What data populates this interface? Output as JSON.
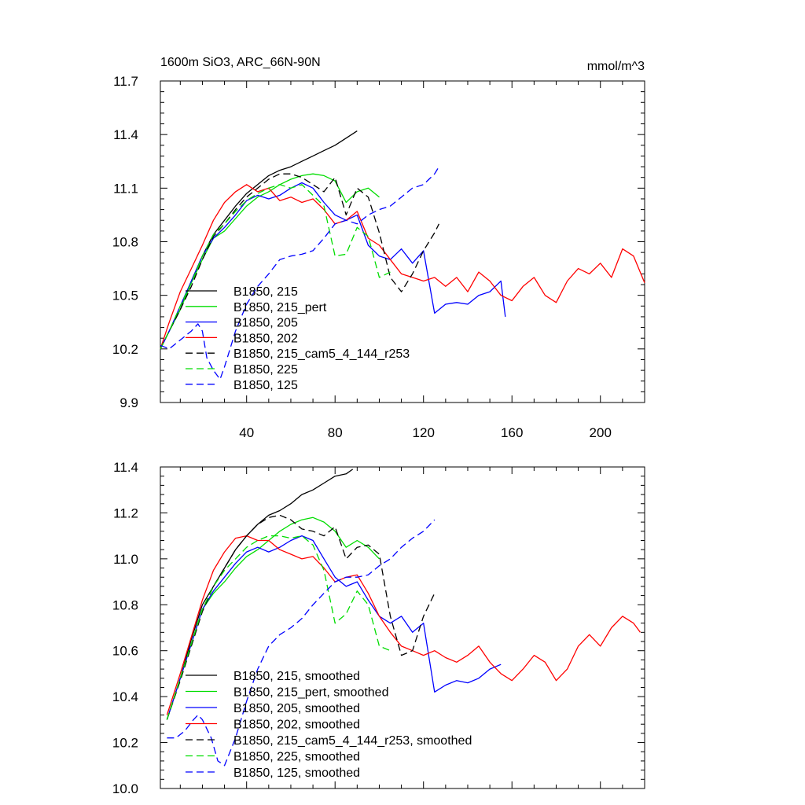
{
  "chart_data": [
    {
      "type": "line",
      "title": "1600m SiO3, ARC_66N-90N",
      "units": "mmol/m^3",
      "xlabel": "",
      "ylabel": "",
      "xlim": [
        1,
        220
      ],
      "ylim": [
        9.9,
        11.7
      ],
      "xticks": [
        "40",
        "80",
        "120",
        "160",
        "200"
      ],
      "yticks": [
        "9.9",
        "10.2",
        "10.5",
        "10.8",
        "11.1",
        "11.4",
        "11.7"
      ],
      "grid": false,
      "legend_position": "bottom-left",
      "series": [
        {
          "name": "B1850, 215",
          "color": "#000000",
          "dash": "solid",
          "x": [
            1,
            5,
            10,
            15,
            20,
            25,
            30,
            35,
            40,
            45,
            50,
            55,
            60,
            65,
            70,
            75,
            80,
            85,
            90
          ],
          "y": [
            10.2,
            10.3,
            10.42,
            10.58,
            10.72,
            10.84,
            10.92,
            11.0,
            11.07,
            11.12,
            11.17,
            11.2,
            11.22,
            11.25,
            11.28,
            11.31,
            11.34,
            11.38,
            11.42
          ]
        },
        {
          "name": "B1850, 215_pert",
          "color": "#00dd00",
          "dash": "solid",
          "x": [
            1,
            5,
            10,
            15,
            20,
            25,
            30,
            35,
            40,
            45,
            50,
            55,
            60,
            65,
            70,
            75,
            80,
            85,
            90,
            95,
            100
          ],
          "y": [
            10.2,
            10.3,
            10.42,
            10.57,
            10.7,
            10.82,
            10.86,
            10.93,
            11.0,
            11.05,
            11.08,
            11.12,
            11.15,
            11.17,
            11.18,
            11.17,
            11.14,
            11.02,
            11.08,
            11.1,
            11.05
          ]
        },
        {
          "name": "B1850, 205",
          "color": "#0000ff",
          "dash": "solid",
          "x": [
            1,
            5,
            10,
            15,
            20,
            25,
            30,
            35,
            40,
            45,
            50,
            55,
            60,
            65,
            70,
            75,
            80,
            85,
            90,
            95,
            100,
            105,
            110,
            115,
            120,
            125,
            130,
            135,
            140,
            145,
            150,
            155,
            157
          ],
          "y": [
            10.2,
            10.3,
            10.44,
            10.58,
            10.72,
            10.82,
            10.88,
            10.95,
            11.03,
            11.06,
            11.04,
            11.06,
            11.1,
            11.13,
            11.1,
            11.02,
            10.95,
            10.92,
            10.95,
            10.78,
            10.72,
            10.7,
            10.76,
            10.68,
            10.75,
            10.4,
            10.45,
            10.46,
            10.45,
            10.5,
            10.52,
            10.58,
            10.38
          ]
        },
        {
          "name": "B1850, 202",
          "color": "#ff0000",
          "dash": "solid",
          "x": [
            1,
            5,
            10,
            15,
            20,
            25,
            30,
            35,
            40,
            45,
            50,
            55,
            60,
            65,
            70,
            75,
            80,
            85,
            90,
            95,
            100,
            105,
            110,
            115,
            120,
            125,
            130,
            135,
            140,
            145,
            150,
            155,
            160,
            165,
            170,
            175,
            180,
            185,
            190,
            195,
            200,
            205,
            210,
            215,
            220
          ],
          "y": [
            10.2,
            10.35,
            10.52,
            10.65,
            10.78,
            10.92,
            11.02,
            11.08,
            11.12,
            11.08,
            11.1,
            11.03,
            11.05,
            11.02,
            11.04,
            10.98,
            10.9,
            10.92,
            10.97,
            10.82,
            10.78,
            10.7,
            10.62,
            10.6,
            10.58,
            10.6,
            10.55,
            10.6,
            10.52,
            10.63,
            10.58,
            10.5,
            10.47,
            10.55,
            10.6,
            10.5,
            10.46,
            10.58,
            10.65,
            10.62,
            10.68,
            10.6,
            10.76,
            10.72,
            10.57
          ]
        },
        {
          "name": "B1850, 215_cam5_4_144_r253",
          "color": "#000000",
          "dash": "dashed",
          "x": [
            1,
            5,
            10,
            15,
            20,
            25,
            30,
            35,
            40,
            45,
            50,
            55,
            60,
            65,
            70,
            75,
            80,
            85,
            90,
            95,
            100,
            105,
            110,
            115,
            120,
            125,
            127
          ],
          "y": [
            10.2,
            10.3,
            10.42,
            10.55,
            10.7,
            10.83,
            10.9,
            10.98,
            11.05,
            11.1,
            11.15,
            11.18,
            11.18,
            11.16,
            11.12,
            11.08,
            11.16,
            10.95,
            11.1,
            11.05,
            10.85,
            10.6,
            10.52,
            10.62,
            10.75,
            10.85,
            10.9
          ]
        },
        {
          "name": "B1850, 225",
          "color": "#00dd00",
          "dash": "dashed",
          "x": [
            1,
            5,
            10,
            15,
            20,
            25,
            30,
            35,
            40,
            45,
            50,
            55,
            60,
            65,
            70,
            75,
            80,
            85,
            90,
            95,
            100,
            105
          ],
          "y": [
            10.2,
            10.3,
            10.44,
            10.57,
            10.72,
            10.84,
            10.9,
            10.97,
            11.03,
            11.07,
            11.1,
            11.12,
            11.1,
            11.12,
            11.06,
            11.0,
            10.72,
            10.73,
            10.88,
            10.83,
            10.6,
            10.63
          ]
        },
        {
          "name": "B1850, 125",
          "color": "#0000ff",
          "dash": "dashed",
          "x": [
            1,
            5,
            10,
            15,
            18,
            20,
            22,
            25,
            28,
            30,
            35,
            40,
            45,
            50,
            55,
            60,
            65,
            70,
            75,
            80,
            85,
            90,
            95,
            100,
            105,
            110,
            115,
            120,
            125,
            127
          ],
          "y": [
            10.22,
            10.2,
            10.25,
            10.3,
            10.34,
            10.3,
            10.15,
            10.08,
            10.03,
            10.1,
            10.3,
            10.45,
            10.55,
            10.62,
            10.7,
            10.72,
            10.73,
            10.75,
            10.82,
            10.9,
            10.92,
            10.9,
            10.95,
            10.98,
            11.0,
            11.05,
            11.1,
            11.12,
            11.18,
            11.22
          ]
        }
      ]
    },
    {
      "type": "line",
      "title": "",
      "xlabel": "",
      "ylabel": "",
      "xlim": [
        1,
        220
      ],
      "ylim": [
        10.0,
        11.4
      ],
      "yticks": [
        "10.0",
        "10.2",
        "10.4",
        "10.6",
        "10.8",
        "11.0",
        "11.2",
        "11.4"
      ],
      "grid": false,
      "legend_position": "bottom-left",
      "series": [
        {
          "name": "B1850, 215, smoothed",
          "color": "#000000",
          "dash": "solid",
          "x": [
            4,
            10,
            15,
            20,
            25,
            30,
            35,
            40,
            45,
            50,
            55,
            60,
            65,
            70,
            75,
            80,
            85,
            88
          ],
          "y": [
            10.3,
            10.48,
            10.65,
            10.8,
            10.88,
            10.96,
            11.04,
            11.1,
            11.15,
            11.19,
            11.21,
            11.24,
            11.28,
            11.3,
            11.33,
            11.36,
            11.37,
            11.39
          ]
        },
        {
          "name": "B1850, 215_pert, smoothed",
          "color": "#00dd00",
          "dash": "solid",
          "x": [
            4,
            10,
            15,
            20,
            25,
            30,
            35,
            40,
            45,
            50,
            55,
            60,
            65,
            70,
            75,
            80,
            85,
            90,
            95,
            100
          ],
          "y": [
            10.3,
            10.48,
            10.63,
            10.78,
            10.85,
            10.9,
            10.96,
            11.01,
            11.04,
            11.08,
            11.12,
            11.15,
            11.17,
            11.18,
            11.16,
            11.12,
            11.05,
            11.08,
            11.05,
            11.0
          ]
        },
        {
          "name": "B1850, 205, smoothed",
          "color": "#0000ff",
          "dash": "solid",
          "x": [
            4,
            10,
            15,
            20,
            25,
            30,
            35,
            40,
            45,
            50,
            55,
            60,
            65,
            70,
            75,
            80,
            85,
            90,
            95,
            100,
            105,
            110,
            115,
            120,
            125,
            130,
            135,
            140,
            145,
            150,
            155
          ],
          "y": [
            10.3,
            10.48,
            10.63,
            10.78,
            10.86,
            10.92,
            10.98,
            11.03,
            11.05,
            11.03,
            11.05,
            11.08,
            11.1,
            11.08,
            11.0,
            10.92,
            10.88,
            10.9,
            10.82,
            10.75,
            10.72,
            10.75,
            10.68,
            10.72,
            10.42,
            10.45,
            10.47,
            10.46,
            10.48,
            10.52,
            10.54
          ]
        },
        {
          "name": "B1850, 202, smoothed",
          "color": "#ff0000",
          "dash": "solid",
          "x": [
            4,
            10,
            15,
            20,
            25,
            30,
            35,
            40,
            45,
            50,
            55,
            60,
            65,
            70,
            75,
            80,
            85,
            90,
            95,
            100,
            105,
            110,
            115,
            120,
            125,
            130,
            135,
            140,
            145,
            150,
            155,
            160,
            165,
            170,
            175,
            180,
            185,
            190,
            195,
            200,
            205,
            210,
            215,
            218
          ],
          "y": [
            10.32,
            10.5,
            10.66,
            10.82,
            10.95,
            11.03,
            11.09,
            11.1,
            11.08,
            11.08,
            11.04,
            11.02,
            11.0,
            11.01,
            10.96,
            10.9,
            10.92,
            10.93,
            10.85,
            10.75,
            10.68,
            10.62,
            10.6,
            10.58,
            10.6,
            10.57,
            10.55,
            10.58,
            10.62,
            10.55,
            10.5,
            10.47,
            10.52,
            10.58,
            10.55,
            10.47,
            10.52,
            10.62,
            10.67,
            10.62,
            10.7,
            10.75,
            10.72,
            10.68
          ]
        },
        {
          "name": "B1850, 215_cam5_4_144_r253, smoothed",
          "color": "#000000",
          "dash": "dashed",
          "x": [
            4,
            10,
            15,
            20,
            25,
            30,
            35,
            40,
            45,
            50,
            55,
            60,
            65,
            70,
            75,
            80,
            85,
            90,
            95,
            100,
            105,
            110,
            115,
            120,
            125
          ],
          "y": [
            10.3,
            10.47,
            10.62,
            10.77,
            10.88,
            10.96,
            11.04,
            11.1,
            11.15,
            11.18,
            11.19,
            11.17,
            11.13,
            11.12,
            11.1,
            11.14,
            11.0,
            11.05,
            11.06,
            11.02,
            10.75,
            10.58,
            10.6,
            10.75,
            10.85
          ]
        },
        {
          "name": "B1850, 225, smoothed",
          "color": "#00dd00",
          "dash": "dashed",
          "x": [
            4,
            10,
            15,
            20,
            25,
            30,
            35,
            40,
            45,
            50,
            55,
            60,
            65,
            70,
            75,
            80,
            85,
            90,
            95,
            100,
            105
          ],
          "y": [
            10.3,
            10.48,
            10.63,
            10.78,
            10.88,
            10.95,
            11.0,
            11.05,
            11.08,
            11.1,
            11.1,
            11.09,
            11.1,
            11.06,
            10.95,
            10.72,
            10.76,
            10.86,
            10.8,
            10.62,
            10.6
          ]
        },
        {
          "name": "B1850, 125, smoothed",
          "color": "#0000ff",
          "dash": "dashed",
          "x": [
            4,
            8,
            12,
            16,
            18,
            20,
            24,
            27,
            30,
            35,
            40,
            45,
            50,
            55,
            60,
            65,
            70,
            75,
            80,
            85,
            90,
            95,
            100,
            105,
            110,
            115,
            120,
            125
          ],
          "y": [
            10.22,
            10.22,
            10.25,
            10.3,
            10.32,
            10.3,
            10.22,
            10.12,
            10.1,
            10.22,
            10.38,
            10.52,
            10.62,
            10.67,
            10.7,
            10.74,
            10.8,
            10.85,
            10.9,
            10.92,
            10.92,
            10.93,
            10.97,
            11.0,
            11.05,
            11.09,
            11.12,
            11.17
          ]
        }
      ]
    }
  ]
}
